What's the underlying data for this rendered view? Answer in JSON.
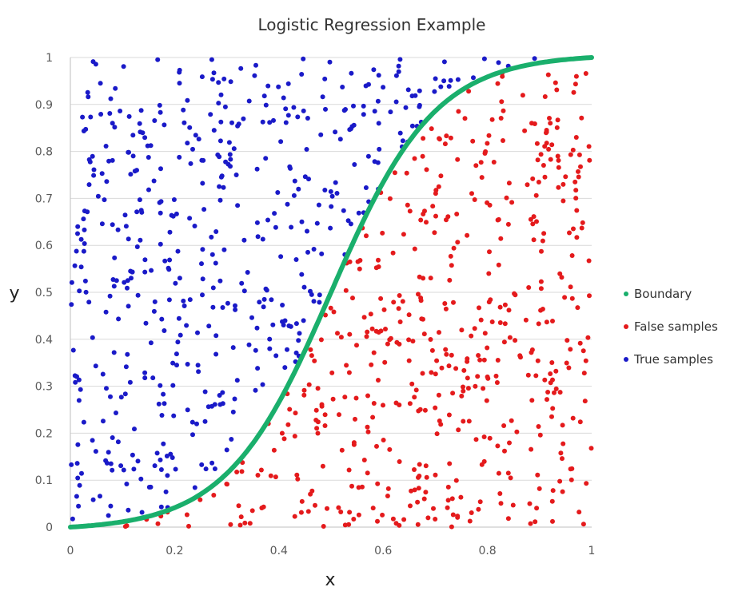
{
  "chart_data": {
    "type": "scatter",
    "title": "Logistic Regression Example",
    "xlabel": "x",
    "ylabel": "y",
    "xlim": [
      0,
      1
    ],
    "ylim": [
      0,
      1
    ],
    "x_ticks": [
      "0",
      "0.2",
      "0.4",
      "0.6",
      "0.8",
      "1"
    ],
    "y_ticks": [
      "0",
      "0.1",
      "0.2",
      "0.3",
      "0.4",
      "0.5",
      "0.6",
      "0.7",
      "0.8",
      "0.9",
      "1"
    ],
    "grid": "horizontal",
    "legend_position": "right",
    "boundary": {
      "function": "logistic",
      "midpoint": 0.5,
      "steepness": 10
    },
    "series": [
      {
        "name": "Boundary",
        "color": "#1aaf6c",
        "kind": "curve"
      },
      {
        "name": "False samples",
        "color": "#e41a1c",
        "kind": "points",
        "region": "below-boundary"
      },
      {
        "name": "True samples",
        "color": "#1a1ac8",
        "kind": "points",
        "region": "above-boundary"
      }
    ],
    "sample_count": 1000
  }
}
